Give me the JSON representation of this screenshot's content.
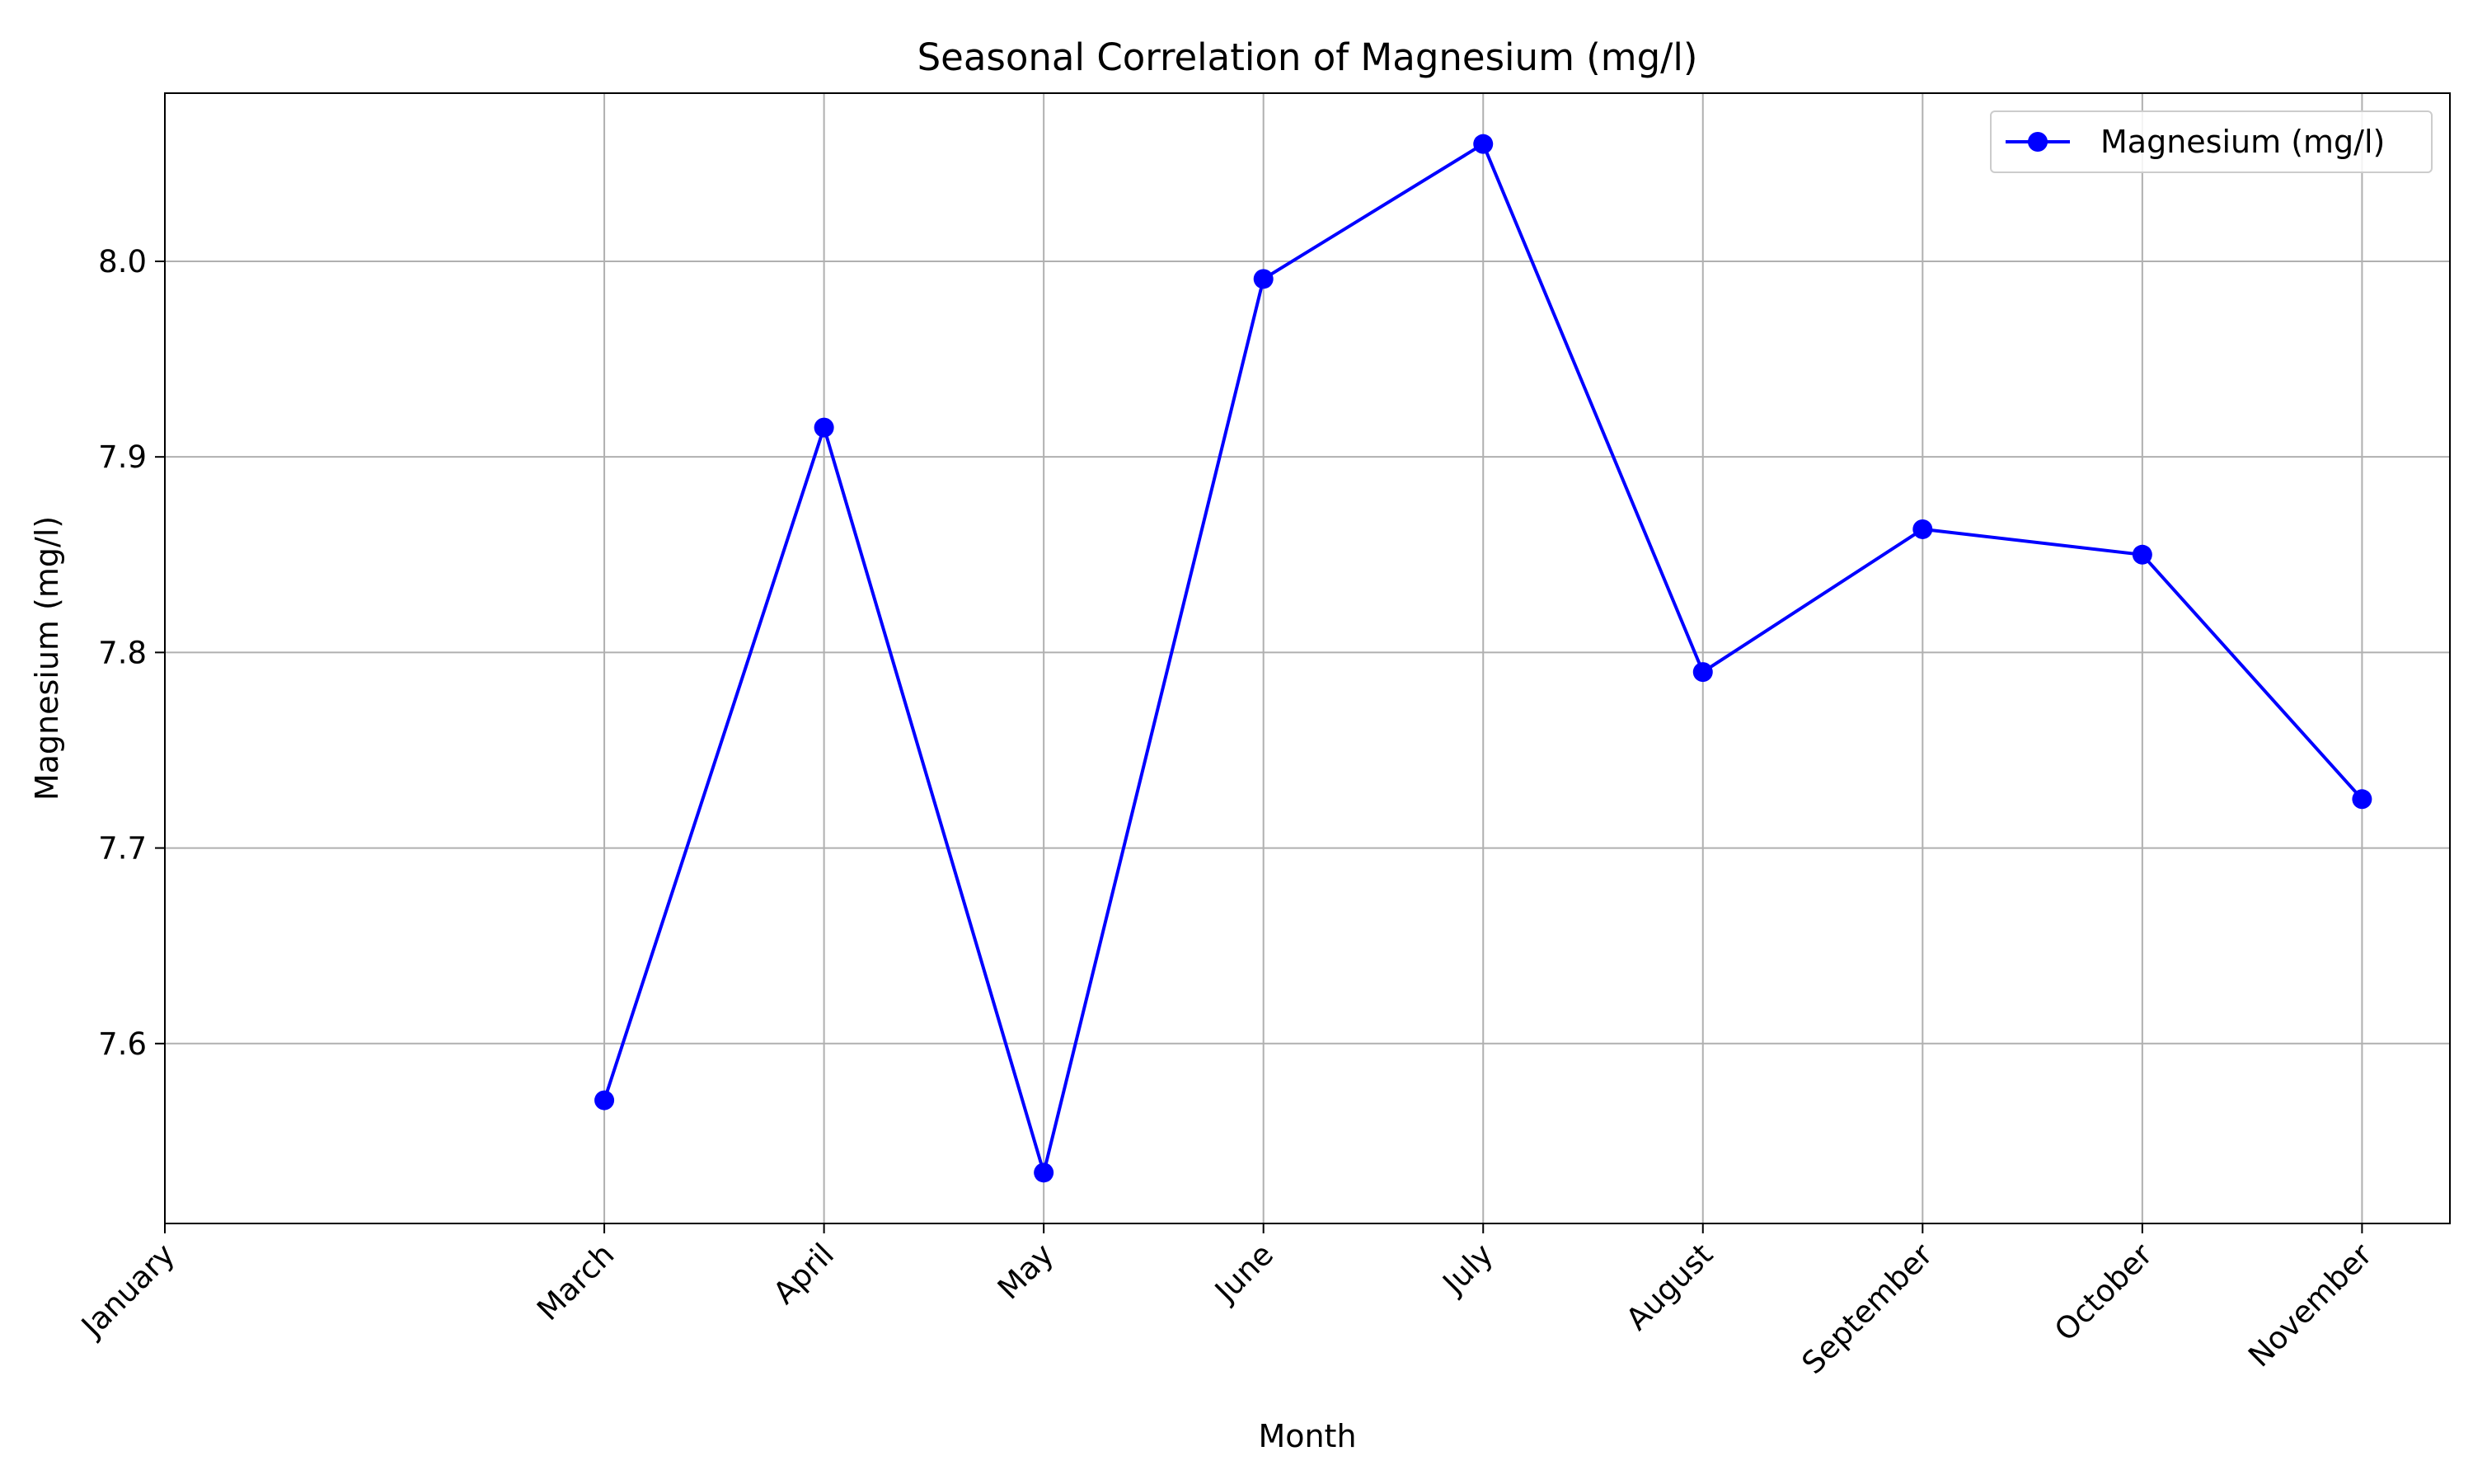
{
  "chart_data": {
    "type": "line",
    "title": "Seasonal Correlation of Magnesium (mg/l)",
    "xlabel": "Month",
    "ylabel": "Magnesium (mg/l)",
    "x_ticks": [
      {
        "label": "January",
        "month": 1
      },
      {
        "label": "March",
        "month": 3
      },
      {
        "label": "April",
        "month": 4
      },
      {
        "label": "May",
        "month": 5
      },
      {
        "label": "June",
        "month": 6
      },
      {
        "label": "July",
        "month": 7
      },
      {
        "label": "August",
        "month": 8
      },
      {
        "label": "September",
        "month": 9
      },
      {
        "label": "October",
        "month": 10
      },
      {
        "label": "November",
        "month": 11
      }
    ],
    "xlim": [
      1,
      11.4
    ],
    "ylim": [
      7.508,
      8.086
    ],
    "y_ticks": [
      "7.6",
      "7.7",
      "7.8",
      "7.9",
      "8.0"
    ],
    "y_tick_values": [
      7.6,
      7.7,
      7.8,
      7.9,
      8.0
    ],
    "series": [
      {
        "name": "Magnesium (mg/l)",
        "color": "#0000ff",
        "marker": "circle",
        "x": [
          3,
          4,
          5,
          6,
          7,
          8,
          9,
          10,
          11
        ],
        "values": [
          7.571,
          7.915,
          7.534,
          7.991,
          8.06,
          7.79,
          7.863,
          7.85,
          7.725
        ]
      }
    ],
    "legend": {
      "position": "top-right"
    },
    "grid": true
  }
}
